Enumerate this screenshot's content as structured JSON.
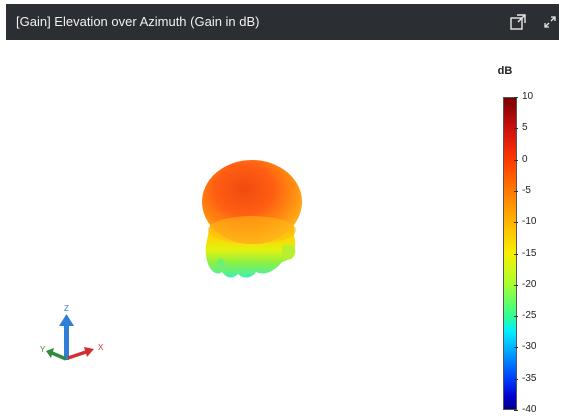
{
  "window": {
    "title": "[Gain] Elevation over Azimuth (Gain in dB)",
    "popout_icon": "popout-window-icon",
    "expand_icon": "expand-icon",
    "titlebar_color": "#2b2f33"
  },
  "colorbar": {
    "unit": "dB",
    "range": [
      -40,
      10
    ],
    "ticks": [
      "10",
      "5",
      "0",
      "-5",
      "-10",
      "-15",
      "-20",
      "-25",
      "-30",
      "-35",
      "-40"
    ],
    "colormap": "jet"
  },
  "axes_triad": {
    "z_label": "Z",
    "y_label": "Y",
    "x_label": "X",
    "z_color": "#2f7fd6",
    "y_color": "#2e8b3a",
    "x_color": "#d13030"
  }
}
